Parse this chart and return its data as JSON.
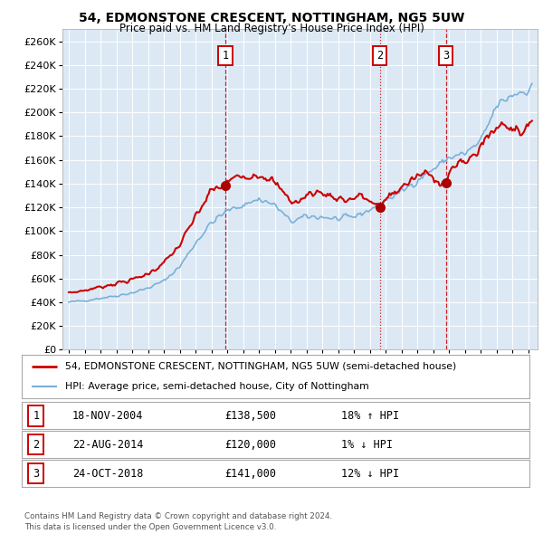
{
  "title": "54, EDMONSTONE CRESCENT, NOTTINGHAM, NG5 5UW",
  "subtitle": "Price paid vs. HM Land Registry's House Price Index (HPI)",
  "ylim": [
    0,
    270000
  ],
  "yticks": [
    0,
    20000,
    40000,
    60000,
    80000,
    100000,
    120000,
    140000,
    160000,
    180000,
    200000,
    220000,
    240000,
    260000
  ],
  "bg_color": "#dce9f5",
  "transactions": [
    {
      "date_num": 2004.88,
      "price": 138500,
      "label": "1",
      "vline_style": "--"
    },
    {
      "date_num": 2014.64,
      "price": 120000,
      "label": "2",
      "vline_style": ":"
    },
    {
      "date_num": 2018.81,
      "price": 141000,
      "label": "3",
      "vline_style": "--"
    }
  ],
  "legend_entries": [
    {
      "label": "54, EDMONSTONE CRESCENT, NOTTINGHAM, NG5 5UW (semi-detached house)",
      "color": "#cc0000",
      "lw": 2
    },
    {
      "label": "HPI: Average price, semi-detached house, City of Nottingham",
      "color": "#7bb0d8",
      "lw": 1.5
    }
  ],
  "table_rows": [
    {
      "num": "1",
      "date": "18-NOV-2004",
      "price": "£138,500",
      "change": "18% ↑ HPI"
    },
    {
      "num": "2",
      "date": "22-AUG-2014",
      "price": "£120,000",
      "change": "1% ↓ HPI"
    },
    {
      "num": "3",
      "date": "24-OCT-2018",
      "price": "£141,000",
      "change": "12% ↓ HPI"
    }
  ],
  "footer": "Contains HM Land Registry data © Crown copyright and database right 2024.\nThis data is licensed under the Open Government Licence v3.0.",
  "red_line_color": "#cc0000",
  "blue_line_color": "#7bb0d8",
  "vline_color": "#cc0000",
  "marker_color": "#aa0000"
}
